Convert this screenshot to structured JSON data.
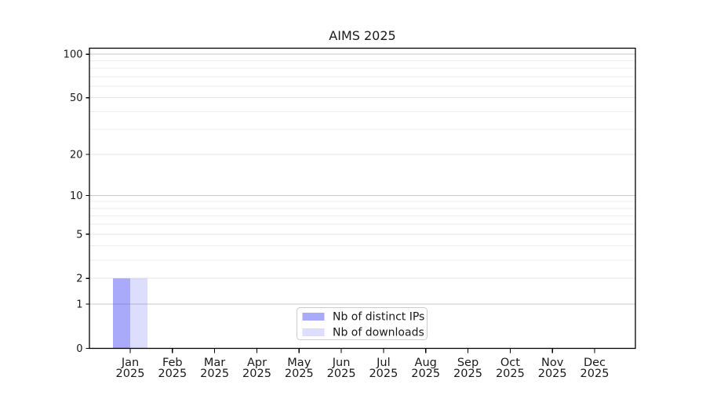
{
  "page": {
    "background": "#ffffff"
  },
  "chart_data": {
    "type": "bar",
    "title": "AIMS 2025",
    "categories": [
      "Jan",
      "Feb",
      "Mar",
      "Apr",
      "May",
      "Jun",
      "Jul",
      "Aug",
      "Sep",
      "Oct",
      "Nov",
      "Dec"
    ],
    "x_tick_second_line": "2025",
    "series": [
      {
        "name": "Nb of distinct IPs",
        "color": "rgba(85,85,245,0.50)",
        "values": [
          2,
          0,
          0,
          0,
          0,
          0,
          0,
          0,
          0,
          0,
          0,
          0
        ]
      },
      {
        "name": "Nb of downloads",
        "color": "rgba(85,85,245,0.20)",
        "values": [
          2,
          0,
          0,
          0,
          0,
          0,
          0,
          0,
          0,
          0,
          0,
          0
        ]
      }
    ],
    "yscale": "symlog(log1p)",
    "ylim": [
      0,
      110
    ],
    "ytick_labels": [
      0,
      1,
      2,
      5,
      10,
      20,
      50,
      100
    ],
    "grid": {
      "major": [
        1,
        10,
        100
      ],
      "minor": [
        3,
        4,
        6,
        7,
        8,
        9,
        30,
        40,
        60,
        70,
        80,
        90
      ]
    },
    "legend": {
      "position": "inside-bottom-center",
      "entries": [
        "Nb of distinct IPs",
        "Nb of downloads"
      ]
    },
    "colors": {
      "axis": "#000000",
      "text": "#1a1a1a",
      "major_grid": "#c9c9c9",
      "labeled_grid": "#e4e4e4",
      "minor_grid": "#ededed",
      "legend_border": "#cccccc",
      "legend_bg": "#ffffff"
    }
  }
}
